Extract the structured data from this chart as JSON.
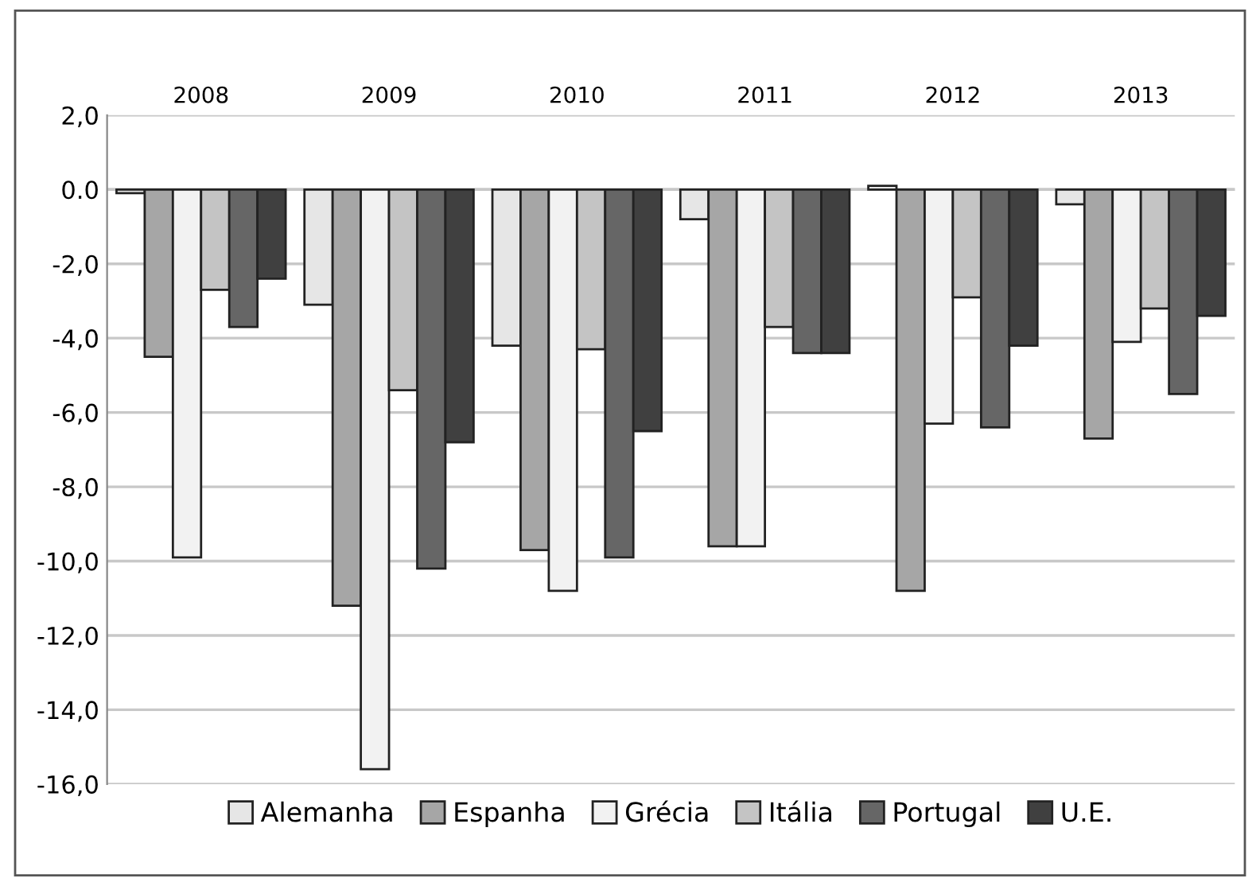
{
  "chart_data": {
    "type": "bar",
    "categories": [
      "2008",
      "2009",
      "2010",
      "2011",
      "2012",
      "2013"
    ],
    "series": [
      {
        "name": "Alemanha",
        "color": "#e6e6e6",
        "values": [
          -0.1,
          -3.1,
          -4.2,
          -0.8,
          0.1,
          -0.4
        ]
      },
      {
        "name": "Espanha",
        "color": "#a6a6a6",
        "values": [
          -4.5,
          -11.2,
          -9.7,
          -9.6,
          -10.8,
          -6.7
        ]
      },
      {
        "name": "Grécia",
        "color": "#f2f2f2",
        "values": [
          -9.9,
          -15.6,
          -10.8,
          -9.6,
          -6.3,
          -4.1
        ]
      },
      {
        "name": "Itália",
        "color": "#c4c4c4",
        "values": [
          -2.7,
          -5.4,
          -4.3,
          -3.7,
          -2.9,
          -3.2
        ]
      },
      {
        "name": "Portugal",
        "color": "#666666",
        "values": [
          -3.7,
          -10.2,
          -9.9,
          -4.4,
          -6.4,
          -5.5
        ]
      },
      {
        "name": "U.E.",
        "color": "#404040",
        "values": [
          -2.4,
          -6.8,
          -6.5,
          -4.4,
          -4.2,
          -3.4
        ]
      }
    ],
    "ylim": [
      -16,
      2
    ],
    "yticks": [
      {
        "value": 2,
        "label": "2,0"
      },
      {
        "value": 0,
        "label": "0.0"
      },
      {
        "value": -2,
        "label": "-2,0"
      },
      {
        "value": -4,
        "label": "-4,0"
      },
      {
        "value": -6,
        "label": "-6,0"
      },
      {
        "value": -8,
        "label": "-8,0"
      },
      {
        "value": -10,
        "label": "-10,0"
      },
      {
        "value": -12,
        "label": "-12,0"
      },
      {
        "value": -14,
        "label": "-14,0"
      },
      {
        "value": -16,
        "label": "-16,0"
      }
    ],
    "grid": "y",
    "legend": "bottom"
  }
}
